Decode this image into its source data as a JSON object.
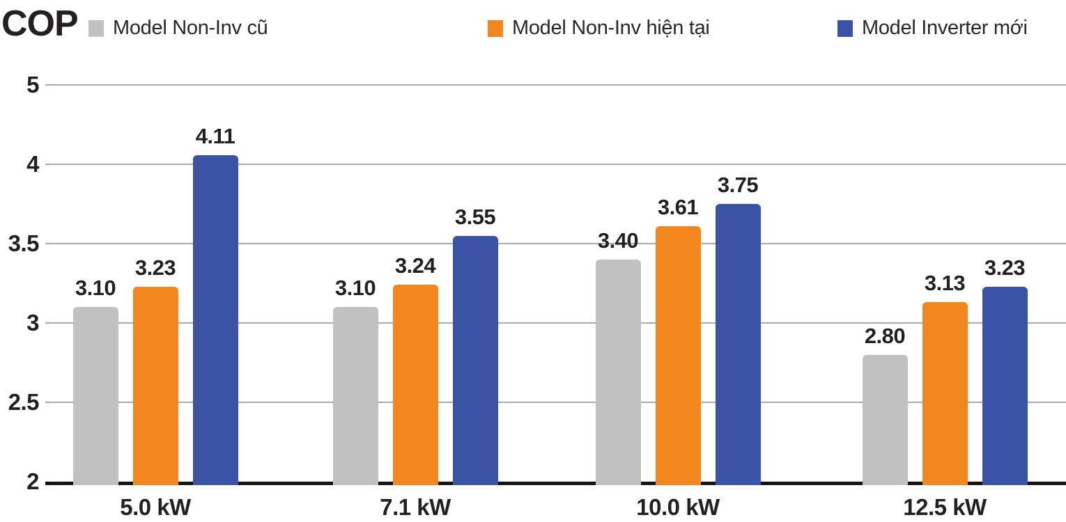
{
  "title": "COP",
  "colors": {
    "series_gray": "#c1c1c2",
    "series_orange": "#f2871f",
    "series_blue": "#3a53a5",
    "gridline": "#a7a9ab",
    "axis_line": "#171314",
    "text": "#242021",
    "background": "#ffffff"
  },
  "chart_data": {
    "type": "bar",
    "title": "COP",
    "categories": [
      "5.0 kW",
      "7.1 kW",
      "10.0 kW",
      "12.5 kW"
    ],
    "series": [
      {
        "name": "Model Non-Inv cũ",
        "color": "#c1c1c2",
        "values": [
          3.1,
          3.1,
          3.4,
          2.8
        ]
      },
      {
        "name": "Model Non-Inv hiện tại",
        "color": "#f2871f",
        "values": [
          3.23,
          3.24,
          3.61,
          3.13
        ]
      },
      {
        "name": "Model Inverter mới",
        "color": "#3a53a5",
        "values": [
          4.11,
          3.55,
          3.75,
          3.23
        ]
      }
    ],
    "value_label_format": "2-decimals",
    "y_ticks": [
      "5",
      "4",
      "3.5",
      "3",
      "2.5",
      "2"
    ],
    "y_tick_values": [
      5,
      4,
      3.5,
      3,
      2.5,
      2
    ],
    "y_axis_note": "gridlines evenly spaced; labels non-linear (4 to 5 spans one gridline step)",
    "baseline_value": 2,
    "grid": true,
    "legend_position": "top",
    "value_labels_shown": true
  }
}
